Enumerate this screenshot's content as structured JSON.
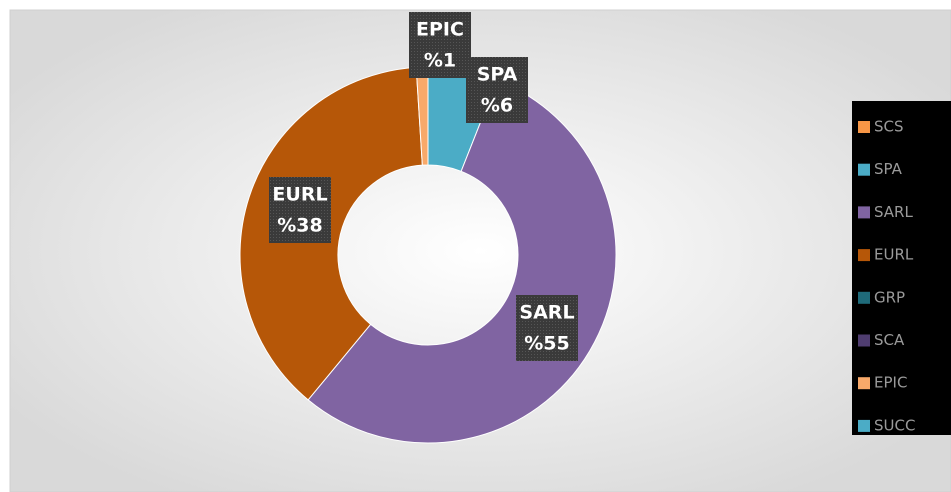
{
  "chart_data": {
    "type": "donut",
    "categories": [
      "SCS",
      "SPA",
      "SARL",
      "EURL",
      "GRP",
      "SCA",
      "EPIC",
      "SUCC"
    ],
    "values": [
      0,
      6,
      55,
      38,
      0,
      0,
      1,
      0
    ],
    "value_labels": [
      null,
      "%6",
      "%55",
      "%38",
      null,
      null,
      "%1",
      null
    ],
    "colors": [
      "#f79646",
      "#4bacc6",
      "#8064a2",
      "#b65708",
      "#1f6b7a",
      "#4f3d70",
      "#f8a96a",
      "#4bacc6"
    ],
    "legend": "right"
  }
}
